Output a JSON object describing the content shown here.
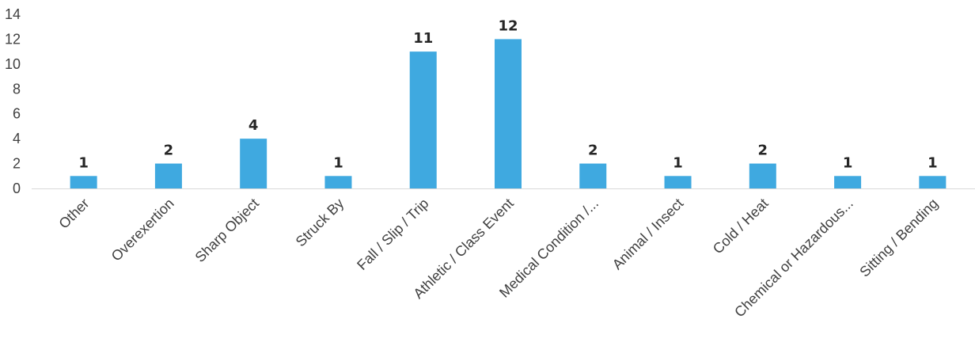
{
  "chart_data": {
    "type": "bar",
    "categories": [
      "Other",
      "Overexertion",
      "Sharp Object",
      "Struck By",
      "Fall / Slip / Trip",
      "Athletic / Class Event",
      "Medical Condition /...",
      "Animal / Insect",
      "Cold / Heat",
      "Chemical or Hazardous...",
      "Sitting / Bending"
    ],
    "values": [
      1,
      2,
      4,
      1,
      11,
      12,
      2,
      1,
      2,
      1,
      1
    ],
    "data_labels": [
      "1",
      "2",
      "4",
      "1",
      "11",
      "12",
      "2",
      "1",
      "2",
      "1",
      "1"
    ],
    "title": "",
    "xlabel": "",
    "ylabel": "",
    "ylim": [
      0,
      14
    ],
    "yticks": [
      "0",
      "2",
      "4",
      "6",
      "8",
      "10",
      "12",
      "14"
    ],
    "grid": false,
    "legend": "none",
    "bar_color": "#3fa9e0"
  }
}
